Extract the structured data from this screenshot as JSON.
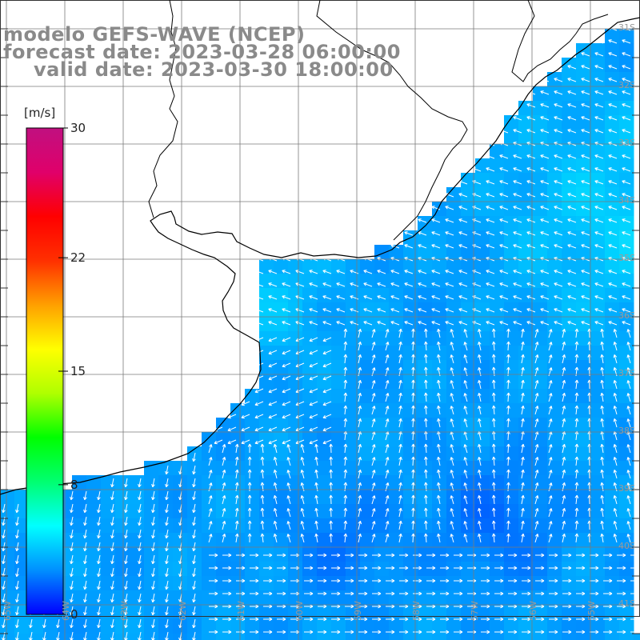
{
  "title": {
    "line1": "modelo GEFS-WAVE (NCEP)",
    "line2": "forecast date: 2023-03-28 06:00:00",
    "line3": "valid date: 2023-03-30 18:00:00"
  },
  "colorbar": {
    "unit": "[m/s]",
    "min": 0,
    "max": 30,
    "ticks": [
      {
        "label": "30",
        "value": 30
      },
      {
        "label": "22",
        "value": 22
      },
      {
        "label": "15",
        "value": 15
      },
      {
        "label": "8",
        "value": 8
      },
      {
        "label": "0",
        "value": 0
      }
    ],
    "colors": [
      "#0000ff",
      "#0090ff",
      "#00ffff",
      "#00ff70",
      "#00ff00",
      "#b0ff00",
      "#ffff00",
      "#ffa000",
      "#ff3000",
      "#ff0000",
      "#e0006a",
      "#c01080"
    ]
  },
  "latitude_labels": [
    "31S",
    "32S",
    "33S",
    "34S",
    "35S",
    "36S",
    "37S",
    "38S",
    "39S",
    "40S",
    "41S"
  ],
  "longitude_labels": [
    "65W",
    "64W",
    "63W",
    "62W",
    "61W",
    "60W",
    "59W",
    "58W",
    "57W",
    "56W",
    "55W"
  ],
  "colors": {
    "background": "#ffffff",
    "land": "#ffffff",
    "grid": "#7a7a7a",
    "coast": "#000000",
    "title_text": "#8a8a8a",
    "arrow": "#ffffff"
  }
}
